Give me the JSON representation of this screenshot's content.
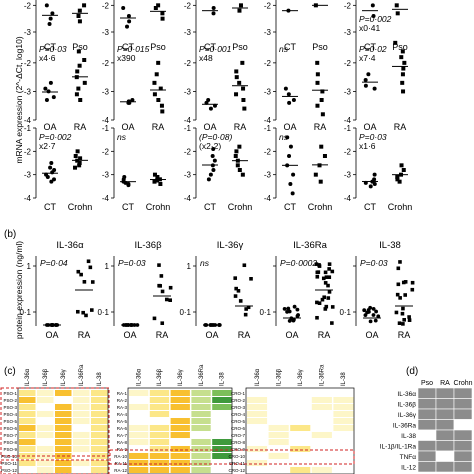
{
  "panel_a": {
    "ylabel": "mRNA expression (2^-ΔCt, log10)",
    "rows": [
      {
        "xticks": [
          "-2",
          "-3"
        ],
        "plots": [
          {
            "groups": [
              "CT",
              "Pso"
            ],
            "stat": "",
            "fold": "",
            "g1": [
              -2.0,
              -2.3,
              -2.5,
              -2.7
            ],
            "g2": [
              -2.0,
              -2.2,
              -2.4,
              -2.6
            ]
          },
          {
            "groups": [
              "CT",
              "Pso"
            ],
            "stat": "",
            "fold": "",
            "g1": [
              -2.1,
              -2.4,
              -2.6,
              -2.8
            ],
            "g2": [
              -2.0,
              -2.1,
              -2.3,
              -2.5
            ]
          },
          {
            "groups": [
              "CT",
              "Pso"
            ],
            "stat": "",
            "fold": "",
            "g1": [
              -2.1,
              -2.3
            ],
            "g2": [
              -2.0,
              -2.2
            ]
          },
          {
            "groups": [
              "CT",
              "Pso"
            ],
            "stat": "",
            "fold": "",
            "g1": [
              -2.2
            ],
            "g2": [
              -2.0
            ]
          },
          {
            "groups": [
              "CT",
              "Pso"
            ],
            "stat": "P=0·002",
            "fold": "x0·41",
            "g1": [
              -2.0,
              -2.4
            ],
            "g2": [
              -2.0,
              -2.3
            ]
          }
        ]
      },
      {
        "xticks": [
          "-2",
          "-3",
          "-4"
        ],
        "plots": [
          {
            "groups": [
              "OA",
              "RA"
            ],
            "stat": "P=0·03",
            "fold": "x4·6",
            "g1": [
              -2.7,
              -2.9,
              -3.0,
              -3.2,
              -3.3
            ],
            "g2": [
              -1.6,
              -1.9,
              -2.1,
              -2.3,
              -2.5,
              -2.7,
              -2.9,
              -3.1,
              -3.3
            ]
          },
          {
            "groups": [
              "OA",
              "RA"
            ],
            "stat": "P=0·015",
            "fold": "x390",
            "g1": [
              -3.3,
              -3.35,
              -3.4,
              -3.4
            ],
            "g2": [
              -2.0,
              -2.4,
              -2.7,
              -2.9,
              -3.1,
              -3.3,
              -3.5,
              -3.7
            ]
          },
          {
            "groups": [
              "OA",
              "RA"
            ],
            "stat": "P=0·001",
            "fold": "x48",
            "g1": [
              -3.3,
              -3.4,
              -3.5,
              -3.6
            ],
            "g2": [
              -2.0,
              -2.3,
              -2.5,
              -2.7,
              -2.9,
              -3.1,
              -3.3,
              -3.6
            ]
          },
          {
            "groups": [
              "OA",
              "RA"
            ],
            "stat": "ns",
            "fold": "",
            "g1": [
              -2.9,
              -3.1,
              -3.3,
              -3.4
            ],
            "g2": [
              -2.0,
              -2.4,
              -2.7,
              -3.0,
              -3.3,
              -3.5,
              -3.8
            ]
          },
          {
            "groups": [
              "OA",
              "RA"
            ],
            "stat": "P=0·02",
            "fold": "x7·4",
            "g1": [
              -2.4,
              -2.6,
              -2.8,
              -2.9
            ],
            "g2": [
              -1.3,
              -1.6,
              -1.8,
              -2.0,
              -2.2,
              -2.4,
              -2.7,
              -3.0
            ]
          }
        ]
      },
      {
        "xticks": [
          "-1",
          "-2",
          "-3",
          "-4"
        ],
        "plots": [
          {
            "groups": [
              "CT",
              "Crohn"
            ],
            "stat": "P=0·002",
            "fold": "x2·7",
            "g1": [
              -2.5,
              -2.7,
              -2.8,
              -2.9,
              -3.0,
              -3.1,
              -3.2,
              -3.3
            ],
            "g2": [
              -2.0,
              -2.2,
              -2.3,
              -2.4,
              -2.5,
              -2.6,
              -2.7
            ]
          },
          {
            "groups": [
              "CT",
              "Crohn"
            ],
            "stat": "ns",
            "fold": "",
            "g1": [
              -3.1,
              -3.2,
              -3.3,
              -3.35,
              -3.4,
              -3.45
            ],
            "g2": [
              -3.0,
              -3.1,
              -3.2,
              -3.25,
              -3.3,
              -3.4
            ]
          },
          {
            "groups": [
              "CT",
              "Crohn"
            ],
            "stat": "(P=0·08)",
            "fold": "(x2·2)",
            "g1": [
              -1.9,
              -2.2,
              -2.4,
              -2.6,
              -2.8,
              -3.0,
              -3.2
            ],
            "g2": [
              -1.8,
              -2.0,
              -2.2,
              -2.4,
              -2.6,
              -2.8,
              -3.0
            ]
          },
          {
            "groups": [
              "CT",
              "Crohn"
            ],
            "stat": "ns",
            "fold": "",
            "g1": [
              -1.4,
              -1.8,
              -2.2,
              -2.6,
              -3.0,
              -3.4,
              -3.8
            ],
            "g2": [
              -1.8,
              -2.2,
              -2.6,
              -3.0,
              -3.3
            ]
          },
          {
            "groups": [
              "CT",
              "Crohn"
            ],
            "stat": "P=0·03",
            "fold": "x1·6",
            "g1": [
              -3.0,
              -3.2,
              -3.3,
              -3.35,
              -3.4,
              -3.5
            ],
            "g2": [
              -2.6,
              -2.8,
              -3.0,
              -3.1,
              -3.2,
              -3.3
            ]
          }
        ]
      }
    ]
  },
  "panel_b": {
    "label": "(b)",
    "ylabel": "protein expression (ng/ml)",
    "yticks": [
      "1",
      "0·1"
    ],
    "plots": [
      {
        "title": "IL-36α",
        "stat": "P=0·04",
        "groups": [
          "OA",
          "RA"
        ]
      },
      {
        "title": "IL-36β",
        "stat": "P=0·03",
        "groups": [
          "OA",
          "RA"
        ]
      },
      {
        "title": "IL-36γ",
        "stat": "ns",
        "groups": [
          "OA",
          "RA"
        ]
      },
      {
        "title": "IL-36Ra",
        "stat": "P=0·0002",
        "groups": [
          "OA",
          "RA"
        ]
      },
      {
        "title": "IL-38",
        "stat": "P=0·03",
        "groups": [
          "OA",
          "RA"
        ]
      }
    ]
  },
  "panel_c": {
    "label": "(c)",
    "columns": [
      "IL-36α",
      "IL-36β",
      "IL-36γ",
      "IL-36Ra",
      "IL-38"
    ],
    "block1_rows": [
      "PSO-1",
      "PSO-2",
      "PSO-3",
      "PSO-4",
      "PSO-5",
      "PSO-6",
      "PSO-7",
      "PSO-8",
      "PSO-9",
      "PSO-10",
      "PSO-11",
      "PSO-12"
    ],
    "block2_rows": [
      "RA-1",
      "RA-2",
      "RA-3",
      "RA-4",
      "RA-5",
      "RA-6",
      "RA-7",
      "RA-8",
      "RA-9",
      "RA-10",
      "RA-11",
      "RA-12"
    ],
    "block3_rows": [
      "CRO-1",
      "CRO-2",
      "CRO-3",
      "CRO-4",
      "CRO-5",
      "CRO-6",
      "CRO-7",
      "CRO-8",
      "CRO-9",
      "CRO-10",
      "CRO-11",
      "CRO-12"
    ],
    "colors": {
      "pale": "#fdf6c8",
      "light": "#fce788",
      "mid": "#f8c030",
      "strong": "#e88a10",
      "green1": "#c6df8e",
      "green2": "#7cbf5a",
      "green3": "#3f9a3c",
      "highlight": "#d02020"
    }
  },
  "panel_d": {
    "label": "(d)",
    "columns": [
      "Pso",
      "RA",
      "Crohn"
    ],
    "rows": [
      "IL-36α",
      "IL-36β",
      "IL-36γ",
      "IL-36Ra",
      "IL-38",
      "IL-1β/IL-1Ra",
      "TNFα",
      "IL-12"
    ],
    "fill": "#8c8c8c",
    "cells": [
      [
        1,
        1,
        1
      ],
      [
        1,
        1,
        1
      ],
      [
        1,
        1,
        1
      ],
      [
        1,
        1,
        0
      ],
      [
        0,
        1,
        1
      ],
      [
        1,
        1,
        1
      ],
      [
        1,
        0,
        1
      ],
      [
        1,
        1,
        1
      ]
    ]
  }
}
